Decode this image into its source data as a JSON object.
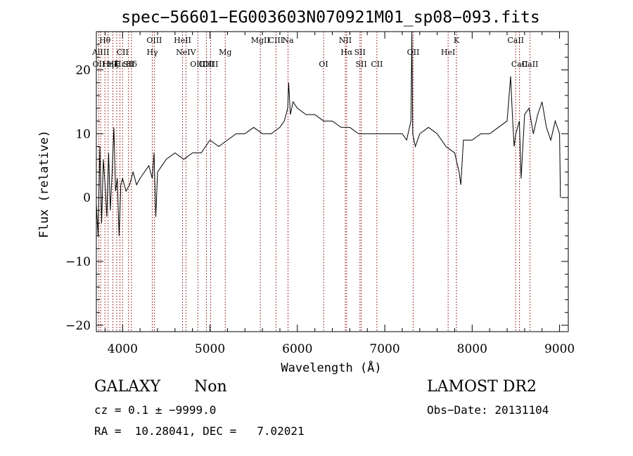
{
  "chart_data": {
    "type": "line",
    "title": "spec−56601−EG003603N070921M01_sp08−093.fits",
    "xlabel": "Wavelength (Å)",
    "ylabel": "Flux (relative)",
    "xlim": [
      3700,
      9100
    ],
    "ylim": [
      -21,
      26
    ],
    "xticks": [
      4000,
      5000,
      6000,
      7000,
      8000,
      9000
    ],
    "yticks": [
      -20,
      -10,
      0,
      10,
      20
    ],
    "xtick_labels": [
      "4000",
      "5000",
      "6000",
      "7000",
      "8000",
      "9000"
    ],
    "ytick_labels": [
      "−20",
      "−10",
      "0",
      "10",
      "20"
    ],
    "series": [
      {
        "color": "#000000",
        "x": [
          3700,
          3720,
          3740,
          3760,
          3780,
          3800,
          3820,
          3840,
          3860,
          3880,
          3900,
          3920,
          3940,
          3960,
          3980,
          4000,
          4040,
          4080,
          4120,
          4160,
          4200,
          4250,
          4300,
          4340,
          4360,
          4380,
          4400,
          4450,
          4500,
          4600,
          4700,
          4800,
          4900,
          5000,
          5100,
          5200,
          5300,
          5400,
          5500,
          5600,
          5700,
          5800,
          5850,
          5890,
          5900,
          5920,
          5950,
          6000,
          6100,
          6200,
          6300,
          6400,
          6500,
          6600,
          6700,
          6800,
          6900,
          7000,
          7100,
          7200,
          7250,
          7300,
          7310,
          7320,
          7350,
          7400,
          7500,
          7600,
          7700,
          7800,
          7850,
          7870,
          7900,
          8000,
          8100,
          8200,
          8300,
          8400,
          8440,
          8460,
          8480,
          8500,
          8540,
          8560,
          8600,
          8650,
          8700,
          8750,
          8800,
          8850,
          8900,
          8950,
          9000,
          9010
        ],
        "y": [
          -1,
          -6,
          8,
          -4,
          6,
          2,
          -3,
          7,
          -2,
          4,
          11,
          1,
          3,
          -6,
          2,
          3,
          1,
          2,
          4,
          2,
          3,
          4,
          5,
          3,
          7,
          -3,
          4,
          5,
          6,
          7,
          6,
          7,
          7,
          9,
          8,
          9,
          10,
          10,
          11,
          10,
          10,
          11,
          12,
          14,
          18,
          13,
          15,
          14,
          13,
          13,
          12,
          12,
          11,
          11,
          10,
          10,
          10,
          10,
          10,
          10,
          9,
          12,
          26,
          10,
          8,
          10,
          11,
          10,
          8,
          7,
          4,
          2,
          9,
          9,
          10,
          10,
          11,
          12,
          19,
          13,
          8,
          10,
          12,
          3,
          13,
          14,
          10,
          13,
          15,
          11,
          9,
          12,
          10,
          0
        ]
      }
    ],
    "line_markers": [
      {
        "x": 3727,
        "label": "OII",
        "row": 3
      },
      {
        "x": 3750,
        "label": "AlIII",
        "row": 2
      },
      {
        "x": 3798,
        "label": "Hθ",
        "row": 1
      },
      {
        "x": 3835,
        "label": "Hη",
        "row": 3
      },
      {
        "x": 3889,
        "label": "Hζ",
        "row": 3
      },
      {
        "x": 3933,
        "label": "K",
        "row": 3
      },
      {
        "x": 3970,
        "label": "Hε",
        "row": 3
      },
      {
        "x": 4000,
        "label": "CII",
        "row": 2
      },
      {
        "x": 4068,
        "label": "SII",
        "row": 3
      },
      {
        "x": 4101,
        "label": "Hδ",
        "row": 3
      },
      {
        "x": 4340,
        "label": "Hγ",
        "row": 2
      },
      {
        "x": 4363,
        "label": "OIII",
        "row": 1
      },
      {
        "x": 4686,
        "label": "HeII",
        "row": 1
      },
      {
        "x": 4725,
        "label": "NeIV",
        "row": 2
      },
      {
        "x": 4861,
        "label": "OIII",
        "row": 3
      },
      {
        "x": 4959,
        "label": "OIII",
        "row": 3
      },
      {
        "x": 5007,
        "label": "OIII",
        "row": 3
      },
      {
        "x": 5175,
        "label": "Mg",
        "row": 2
      },
      {
        "x": 5577,
        "label": "MgII",
        "row": 1
      },
      {
        "x": 5755,
        "label": "CIII",
        "row": 1
      },
      {
        "x": 5893,
        "label": "Na",
        "row": 1
      },
      {
        "x": 6300,
        "label": "OI",
        "row": 3
      },
      {
        "x": 6548,
        "label": "NII",
        "row": 1
      },
      {
        "x": 6563,
        "label": "Hα",
        "row": 2
      },
      {
        "x": 6716,
        "label": "SII",
        "row": 2
      },
      {
        "x": 6731,
        "label": "SII",
        "row": 3
      },
      {
        "x": 6910,
        "label": "CII",
        "row": 3
      },
      {
        "x": 7325,
        "label": "OII",
        "row": 2
      },
      {
        "x": 7725,
        "label": "HeI",
        "row": 2
      },
      {
        "x": 7820,
        "label": "K",
        "row": 1
      },
      {
        "x": 8498,
        "label": "CaII",
        "row": 1
      },
      {
        "x": 8542,
        "label": "CaII",
        "row": 3
      },
      {
        "x": 8662,
        "label": "CaII",
        "row": 3
      }
    ],
    "marker_color": "#8b0000",
    "grid": false
  },
  "info": {
    "class_label": "GALAXY",
    "subclass_label": "Non",
    "cz_line": "cz = 0.1 ± −9999.0",
    "radec_line": "RA =  10.28041, DEC =   7.02021",
    "survey_label": "LAMOST DR2",
    "obs_date_line": "Obs−Date: 20131104"
  }
}
